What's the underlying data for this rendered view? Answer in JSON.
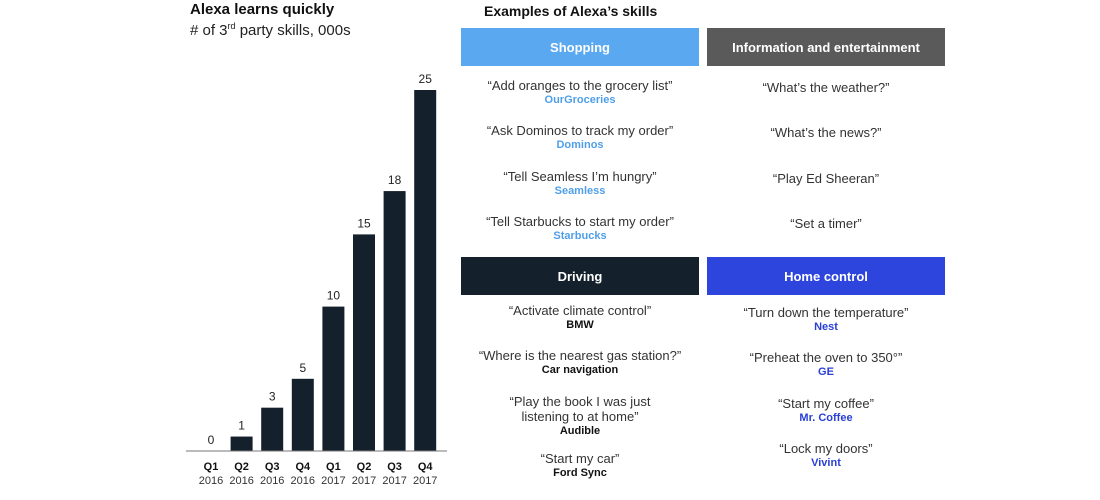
{
  "chart_data": {
    "type": "bar",
    "title": "Alexa learns quickly",
    "subtitle_prefix": "# of 3",
    "subtitle_sup": "rd",
    "subtitle_suffix": " party skills, 000s",
    "categories": [
      {
        "q": "Q1",
        "year": "2016"
      },
      {
        "q": "Q2",
        "year": "2016"
      },
      {
        "q": "Q3",
        "year": "2016"
      },
      {
        "q": "Q4",
        "year": "2016"
      },
      {
        "q": "Q1",
        "year": "2017"
      },
      {
        "q": "Q2",
        "year": "2017"
      },
      {
        "q": "Q3",
        "year": "2017"
      },
      {
        "q": "Q4",
        "year": "2017"
      }
    ],
    "values": [
      0,
      1,
      3,
      5,
      10,
      15,
      18,
      25
    ],
    "ylim": [
      0,
      25
    ],
    "bar_color": "#15202d",
    "grid": false
  },
  "skills": {
    "title": "Examples of Alexa’s skills",
    "categories": [
      {
        "name": "Shopping",
        "header_color": "#5aa9f0",
        "skill_color": "#4f9fe8",
        "examples": [
          {
            "quote": "“Add oranges to the grocery list”",
            "skill": "OurGroceries"
          },
          {
            "quote": "“Ask Dominos to track my order”",
            "skill": "Dominos"
          },
          {
            "quote": "“Tell Seamless I’m hungry”",
            "skill": "Seamless"
          },
          {
            "quote": "“Tell Starbucks to start my order”",
            "skill": "Starbucks"
          }
        ]
      },
      {
        "name": "Information and entertainment",
        "header_color": "#5a5a5a",
        "skill_color": "#555555",
        "examples": [
          {
            "quote": "“What’s the weather?”",
            "skill": ""
          },
          {
            "quote": "“What’s the news?”",
            "skill": ""
          },
          {
            "quote": "“Play Ed Sheeran”",
            "skill": ""
          },
          {
            "quote": "“Set a timer”",
            "skill": ""
          }
        ]
      },
      {
        "name": "Driving",
        "header_color": "#15202d",
        "skill_color": "#111111",
        "examples": [
          {
            "quote": "“Activate climate control”",
            "skill": "BMW"
          },
          {
            "quote": "“Where is the nearest gas station?”",
            "skill": "Car navigation"
          },
          {
            "quote": "“Play the book I was just listening to at home”",
            "skill": "Audible"
          },
          {
            "quote": "“Start my car”",
            "skill": "Ford Sync"
          }
        ]
      },
      {
        "name": "Home control",
        "header_color": "#2e45dd",
        "skill_color": "#2a3fd6",
        "examples": [
          {
            "quote": "“Turn down the temperature”",
            "skill": "Nest"
          },
          {
            "quote": "“Preheat the oven to 350°”",
            "skill": "GE"
          },
          {
            "quote": "“Start my coffee”",
            "skill": "Mr. Coffee"
          },
          {
            "quote": "“Lock my doors”",
            "skill": "Vivint"
          }
        ]
      }
    ]
  }
}
